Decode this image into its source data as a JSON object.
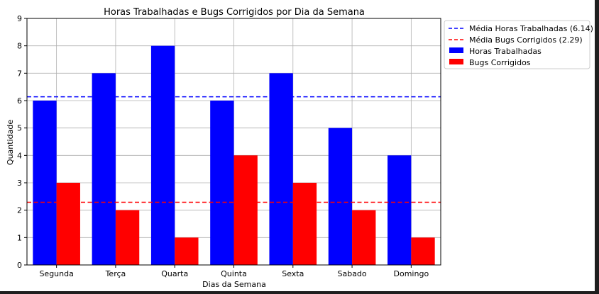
{
  "chart_data": {
    "type": "bar",
    "title": "Horas Trabalhadas e Bugs Corrigidos por Dia da Semana",
    "xlabel": "Dias da Semana",
    "ylabel": "Quantidade",
    "categories": [
      "Segunda",
      "Terça",
      "Quarta",
      "Quinta",
      "Sexta",
      "Sabado",
      "Domingo"
    ],
    "ylim": [
      0,
      9
    ],
    "yticks": [
      "0",
      "1",
      "2",
      "3",
      "4",
      "5",
      "6",
      "7",
      "8",
      "9"
    ],
    "grid": true,
    "legend_position": "upper-right, outside plot",
    "series": [
      {
        "name": "Horas Trabalhadas",
        "values": [
          6,
          7,
          8,
          6,
          7,
          5,
          4
        ],
        "color": "#0000ff"
      },
      {
        "name": "Bugs Corrigidos",
        "values": [
          3,
          2,
          1,
          4,
          3,
          2,
          1
        ],
        "color": "#ff0000"
      }
    ],
    "reference_lines": [
      {
        "name": "Média Horas Trabalhadas (6.14)",
        "value": 6.14,
        "color": "#0000ff",
        "style": "dashed"
      },
      {
        "name": "Média Bugs Corrigidos (2.29)",
        "value": 2.29,
        "color": "#ff0000",
        "style": "dashed"
      }
    ]
  }
}
